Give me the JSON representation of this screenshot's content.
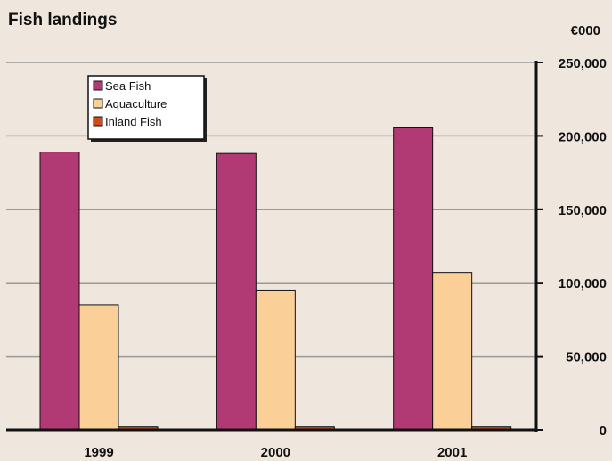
{
  "chart_data": {
    "type": "bar",
    "title": "Fish landings",
    "unit_label": "€000",
    "categories": [
      "1999",
      "2000",
      "2001"
    ],
    "series": [
      {
        "name": "Sea Fish",
        "color": "#b23a74",
        "values": [
          189000,
          188000,
          206000
        ]
      },
      {
        "name": "Aquaculture",
        "color": "#fbcf98",
        "values": [
          85000,
          95000,
          107000
        ]
      },
      {
        "name": "Inland Fish",
        "color": "#d14b1c",
        "values": [
          2000,
          2000,
          2000
        ]
      }
    ],
    "ylim": [
      0,
      250000
    ],
    "yticks": [
      "0",
      "50,000",
      "100,000",
      "150,000",
      "200,000",
      "250,000"
    ],
    "ytick_values": [
      0,
      50000,
      100000,
      150000,
      200000,
      250000
    ],
    "grid": true,
    "legend_position": "top-left"
  }
}
